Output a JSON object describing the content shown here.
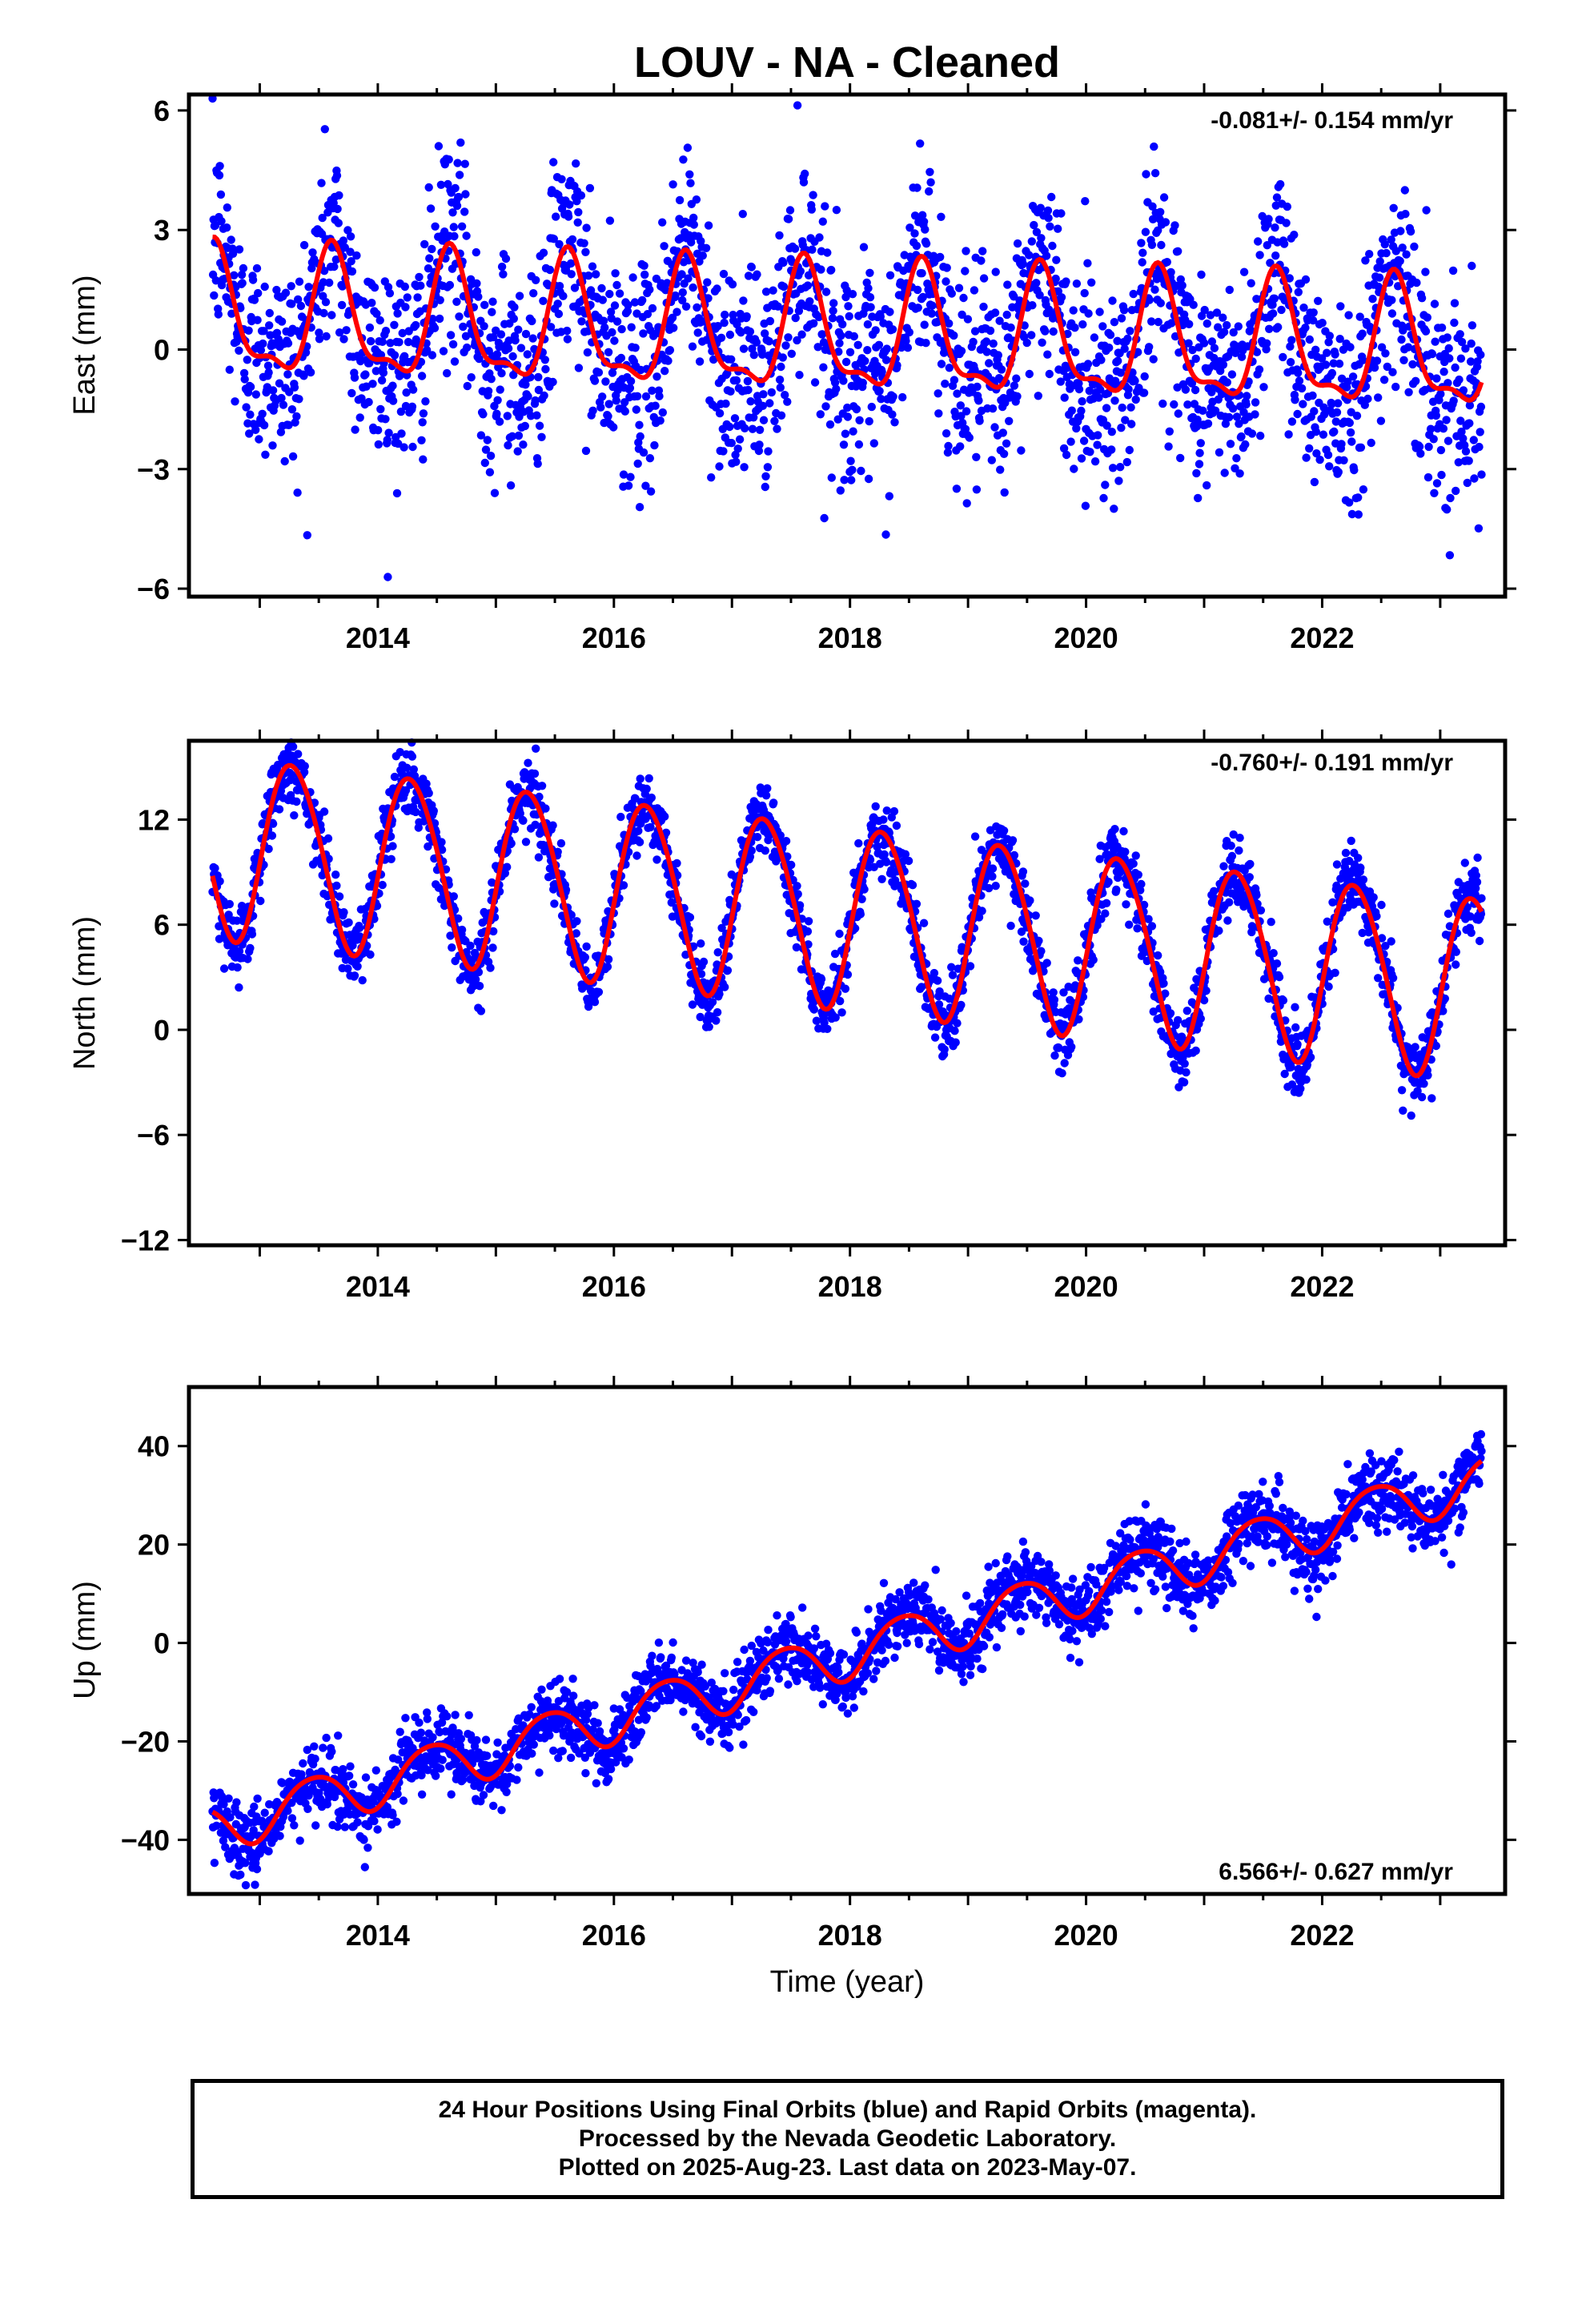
{
  "title": "LOUV  - NA - Cleaned",
  "x_axis_label": "Time (year)",
  "footer": {
    "line1": "24 Hour Positions Using Final Orbits (blue) and Rapid Orbits (magenta).",
    "line2": "Processed by the Nevada Geodetic Laboratory.",
    "line3": "Plotted on 2025-Aug-23. Last data on 2023-May-07."
  },
  "colors": {
    "data": "#0000ff",
    "fit": "#ff0000",
    "frame": "#000000"
  },
  "chart_data": [
    {
      "type": "scatter",
      "ylabel": "East (mm)",
      "rate_text": "-0.081+/- 0.154 mm/yr",
      "xlim": [
        2012.4,
        2023.55
      ],
      "ylim": [
        -6.2,
        6.4
      ],
      "x_ticks": [
        2014,
        2016,
        2018,
        2020,
        2022
      ],
      "y_ticks": [
        6,
        3,
        0,
        -3,
        -6
      ],
      "y_tick_labels": [
        "6",
        "3",
        "0",
        "−3",
        "−6"
      ],
      "data_span": [
        2012.6,
        2023.35
      ],
      "fit": {
        "offset": 0.35,
        "trend": -0.081,
        "annual_amp": 1.5,
        "annual_phase": 0.62,
        "semiannual_amp": 0.55,
        "semiannual_phase": 0.1
      },
      "scatter_sd": 1.3,
      "series": [
        {
          "name": "Final Orbits",
          "color": "#0000ff"
        }
      ]
    },
    {
      "type": "scatter",
      "ylabel": "North (mm)",
      "rate_text": "-0.760+/- 0.191 mm/yr",
      "xlim": [
        2012.4,
        2023.55
      ],
      "ylim": [
        -12.3,
        16.5
      ],
      "x_ticks": [
        2014,
        2016,
        2018,
        2020,
        2022
      ],
      "y_ticks": [
        12,
        6,
        0,
        -6,
        -12
      ],
      "y_tick_labels": [
        "12",
        "6",
        "0",
        "−6",
        "−12"
      ],
      "data_span": [
        2012.6,
        2023.35
      ],
      "fit": {
        "offset": 6.5,
        "trend": -0.76,
        "annual_amp": 5.2,
        "annual_phase": 0.28,
        "semiannual_amp": 0.4,
        "semiannual_phase": 0.1
      },
      "scatter_sd": 1.0,
      "series": [
        {
          "name": "Final Orbits",
          "color": "#0000ff"
        }
      ]
    },
    {
      "type": "scatter",
      "ylabel": "Up (mm)",
      "rate_text": "6.566+/- 0.627 mm/yr",
      "xlim": [
        2012.4,
        2023.55
      ],
      "ylim": [
        -51,
        52
      ],
      "x_ticks": [
        2014,
        2016,
        2018,
        2020,
        2022
      ],
      "y_ticks": [
        40,
        20,
        0,
        -20,
        -40
      ],
      "y_tick_labels": [
        "40",
        "20",
        "0",
        "−20",
        "−40"
      ],
      "data_span": [
        2012.6,
        2023.35
      ],
      "fit": {
        "offset": -2.0,
        "trend": 6.566,
        "annual_amp": 5.0,
        "annual_phase": 0.45,
        "semiannual_amp": 0.6,
        "semiannual_phase": 0.2
      },
      "scatter_sd": 3.6,
      "series": [
        {
          "name": "Final Orbits",
          "color": "#0000ff"
        }
      ]
    }
  ]
}
